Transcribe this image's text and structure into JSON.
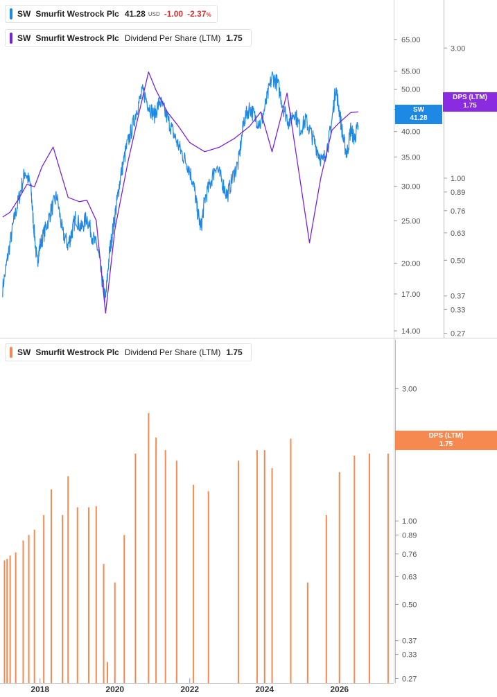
{
  "legend_top": {
    "ticker": "SW",
    "name": "Smurfit Westrock Plc",
    "price": "41.28",
    "currency": "USD",
    "change": "-1.00",
    "change_pct": "-2.37",
    "pct_sign": "%"
  },
  "legend_dps": {
    "ticker": "SW",
    "name": "Smurfit Westrock Plc",
    "metric": "Dividend Per Share (LTM)",
    "value": "1.75"
  },
  "legend_bottom": {
    "ticker": "SW",
    "name": "Smurfit Westrock Plc",
    "metric": "Dividend Per Share (LTM)",
    "value": "1.75"
  },
  "tags": {
    "price": {
      "label": "SW",
      "value": "41.28"
    },
    "dps_top": {
      "label": "DPS (LTM)",
      "value": "1.75"
    },
    "dps_bottom": {
      "label": "DPS (LTM)",
      "value": "1.75"
    }
  },
  "colors": {
    "price": "#1e88e5",
    "dps_line": "#7b22d6",
    "bars": "#f5894f",
    "tag_price": "#1e88e5",
    "tag_dps": "#8a2be2",
    "tag_bars": "#f5894f"
  },
  "chart_data": [
    {
      "type": "line",
      "scale": "log",
      "x_axis_labels": [
        "2018",
        "2020",
        "2022",
        "2024",
        "2026"
      ],
      "price_axis": {
        "ticks": [
          "65.00",
          "55.00",
          "50.00",
          "45.00",
          "40.00",
          "35.00",
          "30.00",
          "25.00",
          "20.00",
          "17.00",
          "14.00"
        ],
        "ylim": [
          13.5,
          80
        ]
      },
      "dps_axis": {
        "ticks": [
          "3.00",
          "2.00",
          "1.00",
          "0.89",
          "0.76",
          "0.63",
          "0.50",
          "0.37",
          "0.33",
          "0.27"
        ],
        "ylim": [
          0.26,
          4.5
        ]
      },
      "series": [
        {
          "name": "SW",
          "axis": "price",
          "points": [
            [
              2017.0,
              17.5
            ],
            [
              2017.15,
              21.0
            ],
            [
              2017.3,
              25.0
            ],
            [
              2017.45,
              28.5
            ],
            [
              2017.6,
              32.5
            ],
            [
              2017.75,
              30.0
            ],
            [
              2017.82,
              25.0
            ],
            [
              2017.92,
              20.0
            ],
            [
              2018.0,
              22.0
            ],
            [
              2018.15,
              24.0
            ],
            [
              2018.3,
              26.5
            ],
            [
              2018.45,
              28.5
            ],
            [
              2018.6,
              23.5
            ],
            [
              2018.75,
              22.0
            ],
            [
              2018.85,
              23.5
            ],
            [
              2018.95,
              25.5
            ],
            [
              2019.1,
              24.0
            ],
            [
              2019.25,
              25.5
            ],
            [
              2019.4,
              23.0
            ],
            [
              2019.55,
              21.5
            ],
            [
              2019.65,
              18.5
            ],
            [
              2019.75,
              16.5
            ],
            [
              2019.85,
              21.0
            ],
            [
              2019.95,
              24.0
            ],
            [
              2020.05,
              27.5
            ],
            [
              2020.15,
              31.5
            ],
            [
              2020.3,
              36.5
            ],
            [
              2020.45,
              40.5
            ],
            [
              2020.6,
              45.5
            ],
            [
              2020.75,
              49.5
            ],
            [
              2020.9,
              46.0
            ],
            [
              2021.05,
              43.5
            ],
            [
              2021.2,
              47.0
            ],
            [
              2021.35,
              44.0
            ],
            [
              2021.5,
              41.0
            ],
            [
              2021.65,
              38.0
            ],
            [
              2021.8,
              35.5
            ],
            [
              2021.95,
              33.5
            ],
            [
              2022.1,
              30.5
            ],
            [
              2022.2,
              26.5
            ],
            [
              2022.3,
              24.0
            ],
            [
              2022.4,
              28.0
            ],
            [
              2022.55,
              30.5
            ],
            [
              2022.7,
              33.5
            ],
            [
              2022.85,
              31.0
            ],
            [
              2023.0,
              28.5
            ],
            [
              2023.15,
              31.5
            ],
            [
              2023.3,
              34.0
            ],
            [
              2023.45,
              42.5
            ],
            [
              2023.6,
              45.5
            ],
            [
              2023.75,
              43.0
            ],
            [
              2023.9,
              41.5
            ],
            [
              2024.05,
              47.0
            ],
            [
              2024.2,
              53.5
            ],
            [
              2024.35,
              51.5
            ],
            [
              2024.5,
              45.5
            ],
            [
              2024.65,
              42.0
            ],
            [
              2024.8,
              44.5
            ],
            [
              2024.95,
              40.5
            ],
            [
              2025.1,
              42.5
            ],
            [
              2025.25,
              39.5
            ],
            [
              2025.4,
              36.5
            ],
            [
              2025.55,
              34.0
            ],
            [
              2025.7,
              37.5
            ],
            [
              2025.8,
              42.5
            ],
            [
              2025.9,
              50.5
            ],
            [
              2026.0,
              44.5
            ],
            [
              2026.1,
              38.5
            ],
            [
              2026.2,
              35.5
            ],
            [
              2026.3,
              40.5
            ],
            [
              2026.4,
              38.5
            ],
            [
              2026.5,
              41.28
            ]
          ]
        },
        {
          "name": "Dividend Per Share (LTM)",
          "axis": "dps",
          "points": [
            [
              2017.0,
              0.72
            ],
            [
              2017.2,
              0.75
            ],
            [
              2017.45,
              0.85
            ],
            [
              2017.65,
              0.95
            ],
            [
              2017.85,
              0.93
            ],
            [
              2018.05,
              1.1
            ],
            [
              2018.35,
              1.3
            ],
            [
              2018.75,
              0.85
            ],
            [
              2019.05,
              0.82
            ],
            [
              2019.25,
              0.83
            ],
            [
              2019.5,
              0.7
            ],
            [
              2019.75,
              0.32
            ],
            [
              2020.0,
              0.65
            ],
            [
              2020.35,
              1.15
            ],
            [
              2020.65,
              1.75
            ],
            [
              2020.9,
              2.45
            ],
            [
              2021.1,
              2.1
            ],
            [
              2021.4,
              1.75
            ],
            [
              2021.7,
              1.55
            ],
            [
              2022.0,
              1.35
            ],
            [
              2022.4,
              1.25
            ],
            [
              2022.8,
              1.3
            ],
            [
              2023.2,
              1.4
            ],
            [
              2023.6,
              1.55
            ],
            [
              2023.9,
              1.75
            ],
            [
              2024.2,
              1.25
            ],
            [
              2024.6,
              2.05
            ],
            [
              2025.2,
              0.58
            ],
            [
              2025.5,
              1.0
            ],
            [
              2025.8,
              1.5
            ],
            [
              2026.0,
              1.6
            ],
            [
              2026.3,
              1.74
            ],
            [
              2026.5,
              1.75
            ]
          ]
        }
      ]
    },
    {
      "type": "bar",
      "scale": "log",
      "x_axis_labels": [
        "2018",
        "2020",
        "2022",
        "2024",
        "2026"
      ],
      "dps_axis": {
        "ticks": [
          "3.00",
          "2.00",
          "1.00",
          "0.89",
          "0.76",
          "0.63",
          "0.50",
          "0.37",
          "0.33",
          "0.27"
        ],
        "ylim": [
          0.26,
          4.5
        ]
      },
      "series": [
        {
          "name": "Dividend Per Share (LTM)",
          "points": [
            [
              2017.05,
              0.72
            ],
            [
              2017.12,
              0.73
            ],
            [
              2017.2,
              0.75
            ],
            [
              2017.35,
              0.77
            ],
            [
              2017.55,
              0.85
            ],
            [
              2017.7,
              0.89
            ],
            [
              2017.85,
              0.93
            ],
            [
              2018.1,
              1.05
            ],
            [
              2018.3,
              1.3
            ],
            [
              2018.6,
              1.05
            ],
            [
              2018.75,
              1.45
            ],
            [
              2019.0,
              1.12
            ],
            [
              2019.3,
              1.12
            ],
            [
              2019.5,
              1.13
            ],
            [
              2019.7,
              0.7
            ],
            [
              2019.8,
              0.31
            ],
            [
              2020.0,
              0.6
            ],
            [
              2020.25,
              0.89
            ],
            [
              2020.55,
              1.75
            ],
            [
              2020.9,
              2.45
            ],
            [
              2021.1,
              2.0
            ],
            [
              2021.35,
              1.8
            ],
            [
              2021.65,
              1.65
            ],
            [
              2022.1,
              1.35
            ],
            [
              2022.5,
              1.28
            ],
            [
              2023.3,
              1.65
            ],
            [
              2023.8,
              1.8
            ],
            [
              2024.0,
              1.8
            ],
            [
              2024.2,
              1.55
            ],
            [
              2024.7,
              1.98
            ],
            [
              2025.15,
              0.6
            ],
            [
              2025.65,
              1.05
            ],
            [
              2026.0,
              1.5
            ],
            [
              2026.4,
              1.72
            ],
            [
              2026.8,
              1.75
            ],
            [
              2027.3,
              1.75
            ]
          ]
        }
      ]
    }
  ]
}
